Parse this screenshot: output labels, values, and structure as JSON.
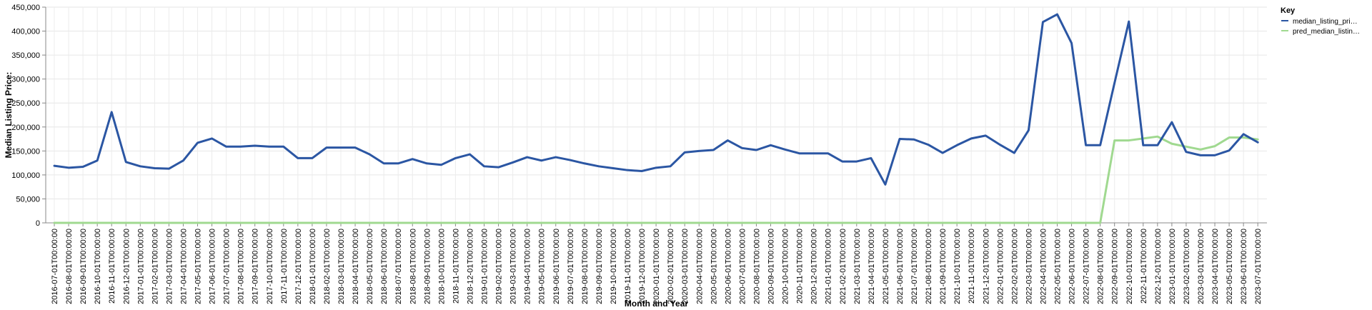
{
  "chart_data": {
    "type": "line",
    "xlabel": "Month and Year",
    "ylabel": "Median Listing Price:",
    "ylim": [
      0,
      450000
    ],
    "yticks": [
      "0",
      "50,000",
      "100,000",
      "150,000",
      "200,000",
      "250,000",
      "300,000",
      "350,000",
      "400,000",
      "450,000"
    ],
    "x": [
      "2016-07-01T00:00:00",
      "2016-08-01T00:00:00",
      "2016-09-01T00:00:00",
      "2016-10-01T00:00:00",
      "2016-11-01T00:00:00",
      "2016-12-01T00:00:00",
      "2017-01-01T00:00:00",
      "2017-02-01T00:00:00",
      "2017-03-01T00:00:00",
      "2017-04-01T00:00:00",
      "2017-05-01T00:00:00",
      "2017-06-01T00:00:00",
      "2017-07-01T00:00:00",
      "2017-08-01T00:00:00",
      "2017-09-01T00:00:00",
      "2017-10-01T00:00:00",
      "2017-11-01T00:00:00",
      "2017-12-01T00:00:00",
      "2018-01-01T00:00:00",
      "2018-02-01T00:00:00",
      "2018-03-01T00:00:00",
      "2018-04-01T00:00:00",
      "2018-05-01T00:00:00",
      "2018-06-01T00:00:00",
      "2018-07-01T00:00:00",
      "2018-08-01T00:00:00",
      "2018-09-01T00:00:00",
      "2018-10-01T00:00:00",
      "2018-11-01T00:00:00",
      "2018-12-01T00:00:00",
      "2019-01-01T00:00:00",
      "2019-02-01T00:00:00",
      "2019-03-01T00:00:00",
      "2019-04-01T00:00:00",
      "2019-05-01T00:00:00",
      "2019-06-01T00:00:00",
      "2019-07-01T00:00:00",
      "2019-08-01T00:00:00",
      "2019-09-01T00:00:00",
      "2019-10-01T00:00:00",
      "2019-11-01T00:00:00",
      "2019-12-01T00:00:00",
      "2020-01-01T00:00:00",
      "2020-02-01T00:00:00",
      "2020-03-01T00:00:00",
      "2020-04-01T00:00:00",
      "2020-05-01T00:00:00",
      "2020-06-01T00:00:00",
      "2020-07-01T00:00:00",
      "2020-08-01T00:00:00",
      "2020-09-01T00:00:00",
      "2020-10-01T00:00:00",
      "2020-11-01T00:00:00",
      "2020-12-01T00:00:00",
      "2021-01-01T00:00:00",
      "2021-02-01T00:00:00",
      "2021-03-01T00:00:00",
      "2021-04-01T00:00:00",
      "2021-05-01T00:00:00",
      "2021-06-01T00:00:00",
      "2021-07-01T00:00:00",
      "2021-08-01T00:00:00",
      "2021-09-01T00:00:00",
      "2021-10-01T00:00:00",
      "2021-11-01T00:00:00",
      "2021-12-01T00:00:00",
      "2022-01-01T00:00:00",
      "2022-02-01T00:00:00",
      "2022-03-01T00:00:00",
      "2022-04-01T00:00:00",
      "2022-05-01T00:00:00",
      "2022-06-01T00:00:00",
      "2022-07-01T00:00:00",
      "2022-08-01T00:00:00",
      "2022-09-01T00:00:00",
      "2022-10-01T00:00:00",
      "2022-11-01T00:00:00",
      "2022-12-01T00:00:00",
      "2023-01-01T00:00:00",
      "2023-02-01T00:00:00",
      "2023-03-01T00:00:00",
      "2023-04-01T00:00:00",
      "2023-05-01T00:00:00",
      "2023-06-01T00:00:00",
      "2023-07-01T00:00:00"
    ],
    "series": [
      {
        "name": "median_listing_pri…",
        "color": "#2b56a3",
        "values": [
          119000,
          115000,
          117000,
          130000,
          231000,
          127000,
          118000,
          114000,
          113000,
          130000,
          167000,
          176000,
          159000,
          159000,
          161000,
          159000,
          159000,
          135000,
          135000,
          157000,
          157000,
          157000,
          143000,
          124000,
          124000,
          133000,
          124000,
          121000,
          135000,
          143000,
          118000,
          116000,
          126000,
          137000,
          130000,
          137000,
          131000,
          124000,
          118000,
          114000,
          110000,
          108000,
          115000,
          118000,
          147000,
          150000,
          152000,
          172000,
          156000,
          152000,
          162000,
          153000,
          145000,
          145000,
          145000,
          128000,
          128000,
          135000,
          80000,
          175000,
          174000,
          163000,
          146000,
          162000,
          176000,
          182000,
          163000,
          146000,
          193000,
          419000,
          435000,
          375000,
          162000,
          162000,
          292000,
          420000,
          162000,
          162000,
          210000,
          148000,
          141000,
          141000,
          151000,
          185000,
          168000
        ]
      },
      {
        "name": "pred_median_listin…",
        "color": "#a0d990",
        "values": [
          0,
          0,
          0,
          0,
          0,
          0,
          0,
          0,
          0,
          0,
          0,
          0,
          0,
          0,
          0,
          0,
          0,
          0,
          0,
          0,
          0,
          0,
          0,
          0,
          0,
          0,
          0,
          0,
          0,
          0,
          0,
          0,
          0,
          0,
          0,
          0,
          0,
          0,
          0,
          0,
          0,
          0,
          0,
          0,
          0,
          0,
          0,
          0,
          0,
          0,
          0,
          0,
          0,
          0,
          0,
          0,
          0,
          0,
          0,
          0,
          0,
          0,
          0,
          0,
          0,
          0,
          0,
          0,
          0,
          0,
          0,
          0,
          0,
          0,
          172000,
          172000,
          176000,
          180000,
          165000,
          159000,
          153000,
          160000,
          178000,
          178000,
          174000
        ]
      }
    ],
    "legend": {
      "title": "Key",
      "position": "right"
    },
    "grid": true
  }
}
